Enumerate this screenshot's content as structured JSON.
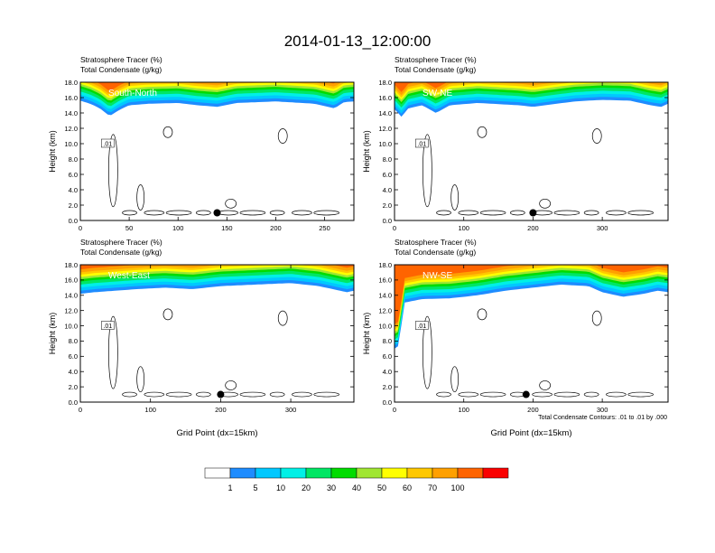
{
  "figure": {
    "title": "2014-01-13_12:00:00",
    "footnote": "Total Condensate Contours: .01 to .01 by .000"
  },
  "colorbar": {
    "colors": [
      "#ffffff",
      "#1e8cff",
      "#00c8ff",
      "#00f0e6",
      "#00e664",
      "#00dc00",
      "#a0e632",
      "#ffff00",
      "#ffc800",
      "#ffa000",
      "#ff6400",
      "#fa0000"
    ],
    "labels": [
      "1",
      "5",
      "10",
      "20",
      "30",
      "40",
      "50",
      "60",
      "70",
      "100"
    ]
  },
  "chart_data": [
    {
      "type": "heatmap",
      "var1": "Stratosphere Tracer   (%)",
      "var2": "Total Condensate   (g/kg)",
      "label": "South-North",
      "ylabel": "Height (km)",
      "xlabel": "",
      "xlim": [
        0,
        280
      ],
      "ylim": [
        0,
        18
      ],
      "xticks": [
        "0",
        "50",
        "100",
        "150",
        "200",
        "250"
      ],
      "yticks": [
        "0.0",
        "2.0",
        "4.0",
        "6.0",
        "8.0",
        "10.0",
        "12.0",
        "14.0",
        "16.0",
        "18.0"
      ],
      "contour_label": ".01",
      "marker_x": 140,
      "marker_y": 1.0,
      "tropopause_km": [
        [
          0,
          15.6
        ],
        [
          10,
          15.2
        ],
        [
          20,
          14.6
        ],
        [
          30,
          13.6
        ],
        [
          40,
          14.4
        ],
        [
          50,
          15.0
        ],
        [
          70,
          15.2
        ],
        [
          100,
          15.3
        ],
        [
          120,
          15.0
        ],
        [
          140,
          14.8
        ],
        [
          160,
          15.3
        ],
        [
          200,
          15.5
        ],
        [
          240,
          15.2
        ],
        [
          260,
          14.6
        ],
        [
          270,
          15.4
        ],
        [
          280,
          15.5
        ]
      ]
    },
    {
      "type": "heatmap",
      "var1": "Stratosphere Tracer   (%)",
      "var2": "Total Condensate   (g/kg)",
      "label": "SW-NE",
      "ylabel": "Height (km)",
      "xlabel": "",
      "xlim": [
        0,
        395
      ],
      "ylim": [
        0,
        18
      ],
      "xticks": [
        "0",
        "100",
        "200",
        "300"
      ],
      "yticks": [
        "0.0",
        "2.0",
        "4.0",
        "6.0",
        "8.0",
        "10.0",
        "12.0",
        "14.0",
        "16.0",
        "18.0"
      ],
      "contour_label": ".01",
      "marker_x": 200,
      "marker_y": 1.0,
      "tropopause_km": [
        [
          0,
          14.5
        ],
        [
          10,
          13.5
        ],
        [
          20,
          14.6
        ],
        [
          40,
          15.0
        ],
        [
          60,
          14.0
        ],
        [
          80,
          15.0
        ],
        [
          120,
          15.3
        ],
        [
          180,
          15.0
        ],
        [
          200,
          14.8
        ],
        [
          260,
          15.5
        ],
        [
          300,
          15.7
        ],
        [
          340,
          15.6
        ],
        [
          370,
          15.0
        ],
        [
          385,
          14.8
        ],
        [
          395,
          15.2
        ]
      ]
    },
    {
      "type": "heatmap",
      "var1": "Stratosphere Tracer   (%)",
      "var2": "Total Condensate   (g/kg)",
      "label": "West-East",
      "ylabel": "Height (km)",
      "xlabel": "Grid Point (dx=15km)",
      "xlim": [
        0,
        390
      ],
      "ylim": [
        0,
        18
      ],
      "xticks": [
        "0",
        "100",
        "200",
        "300"
      ],
      "yticks": [
        "0.0",
        "2.0",
        "4.0",
        "6.0",
        "8.0",
        "10.0",
        "12.0",
        "14.0",
        "16.0",
        "18.0"
      ],
      "contour_label": ".01",
      "marker_x": 200,
      "marker_y": 1.0,
      "tropopause_km": [
        [
          0,
          14.2
        ],
        [
          20,
          14.4
        ],
        [
          50,
          14.6
        ],
        [
          80,
          14.8
        ],
        [
          120,
          15.0
        ],
        [
          160,
          14.8
        ],
        [
          200,
          15.2
        ],
        [
          250,
          15.4
        ],
        [
          300,
          15.6
        ],
        [
          340,
          15.2
        ],
        [
          360,
          14.8
        ],
        [
          380,
          14.4
        ],
        [
          390,
          14.6
        ]
      ]
    },
    {
      "type": "heatmap",
      "var1": "Stratosphere Tracer   (%)",
      "var2": "Total Condensate   (g/kg)",
      "label": "NW-SE",
      "ylabel": "Height (km)",
      "xlabel": "Grid Point (dx=15km)",
      "xlim": [
        0,
        395
      ],
      "ylim": [
        0,
        18
      ],
      "xticks": [
        "0",
        "100",
        "200",
        "300"
      ],
      "yticks": [
        "0.0",
        "2.0",
        "4.0",
        "6.0",
        "8.0",
        "10.0",
        "12.0",
        "14.0",
        "16.0",
        "18.0"
      ],
      "contour_label": ".01",
      "marker_x": 190,
      "marker_y": 1.0,
      "tropopause_km": [
        [
          0,
          7.0
        ],
        [
          8,
          7.5
        ],
        [
          12,
          13.0
        ],
        [
          40,
          13.5
        ],
        [
          80,
          13.6
        ],
        [
          120,
          14.0
        ],
        [
          160,
          14.6
        ],
        [
          200,
          15.0
        ],
        [
          240,
          15.4
        ],
        [
          280,
          15.2
        ],
        [
          300,
          14.4
        ],
        [
          330,
          13.8
        ],
        [
          360,
          14.2
        ],
        [
          380,
          14.6
        ],
        [
          395,
          14.4
        ]
      ]
    }
  ]
}
